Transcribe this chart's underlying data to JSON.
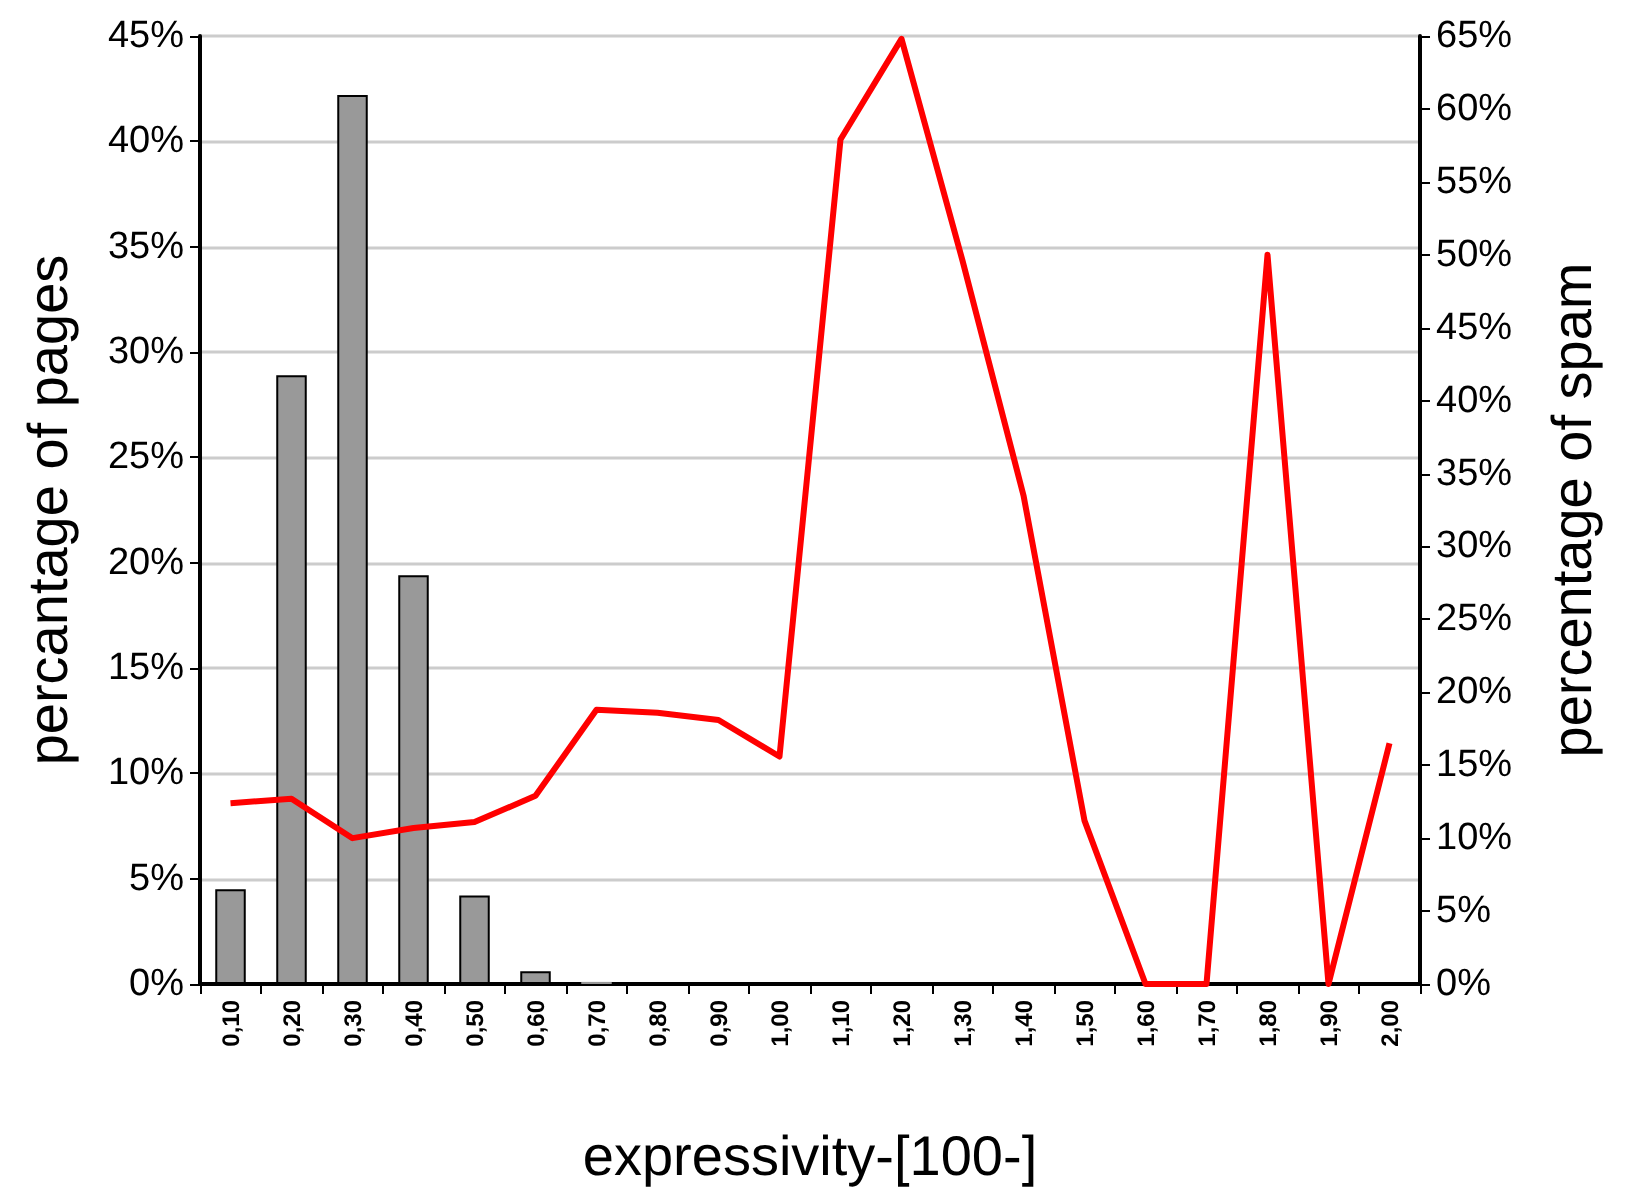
{
  "chart_data": {
    "type": "bar",
    "xlabel": "expressivity-[100-]",
    "ylabel": "percantage of pages",
    "y2label": "percentage of spam",
    "categories": [
      "0,10",
      "0,20",
      "0,30",
      "0,40",
      "0,50",
      "0,60",
      "0,70",
      "0,80",
      "0,90",
      "1,00",
      "1,10",
      "1,20",
      "1,30",
      "1,40",
      "1,50",
      "1,60",
      "1,70",
      "1,80",
      "1,90",
      "2,00"
    ],
    "series": [
      {
        "color": "#999999",
        "values": [
          4.5,
          28.9,
          42.2,
          19.4,
          4.2,
          0.6,
          0.1,
          0,
          0,
          0,
          0,
          0,
          0,
          0,
          0,
          0,
          0,
          0,
          0,
          0
        ]
      },
      {
        "type": "line",
        "axis": "y2",
        "color": "#ff0000",
        "values": [
          12.4,
          12.7,
          10.0,
          10.7,
          11.1,
          12.9,
          18.8,
          18.6,
          18.1,
          15.6,
          57.9,
          64.8,
          49.6,
          33.5,
          11.2,
          0,
          0,
          50,
          0,
          16.5
        ]
      }
    ],
    "ylim": [
      0,
      45
    ],
    "yticks": [
      {
        "value": 0,
        "label": "0%"
      },
      {
        "value": 5,
        "label": "5%"
      },
      {
        "value": 10,
        "label": "10%"
      },
      {
        "value": 15,
        "label": "15%"
      },
      {
        "value": 20,
        "label": "20%"
      },
      {
        "value": 25,
        "label": "25%"
      },
      {
        "value": 30,
        "label": "30%"
      },
      {
        "value": 35,
        "label": "35%"
      },
      {
        "value": 40,
        "label": "40%"
      },
      {
        "value": 45,
        "label": "45%"
      }
    ],
    "y2lim": [
      0,
      65
    ],
    "y2ticks": [
      {
        "value": 0,
        "label": "0%"
      },
      {
        "value": 5,
        "label": "5%"
      },
      {
        "value": 10,
        "label": "10%"
      },
      {
        "value": 15,
        "label": "15%"
      },
      {
        "value": 20,
        "label": "20%"
      },
      {
        "value": 25,
        "label": "25%"
      },
      {
        "value": 30,
        "label": "30%"
      },
      {
        "value": 35,
        "label": "35%"
      },
      {
        "value": 40,
        "label": "40%"
      },
      {
        "value": 45,
        "label": "45%"
      },
      {
        "value": 50,
        "label": "50%"
      },
      {
        "value": 55,
        "label": "55%"
      },
      {
        "value": 60,
        "label": "60%"
      },
      {
        "value": 65,
        "label": "65%"
      }
    ],
    "grid": "y",
    "marker": "none",
    "line_style": "solid"
  }
}
